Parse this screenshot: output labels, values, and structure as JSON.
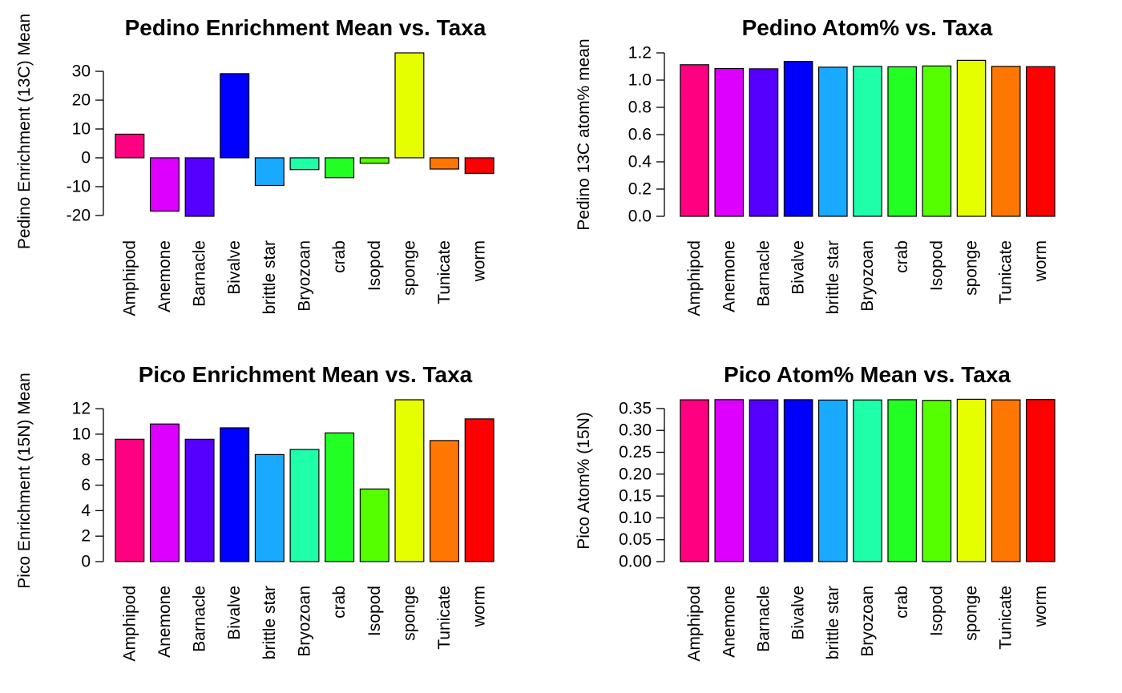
{
  "chart_data": [
    {
      "type": "bar",
      "title": "Pedino Enrichment Mean vs. Taxa",
      "ylabel": "Pedino Enrichment (13C) Mean",
      "xlabel": "",
      "categories": [
        "Amphipod",
        "Anemone",
        "Barnacle",
        "Bivalve",
        "brittle star",
        "Bryozoan",
        "crab",
        "Isopod",
        "sponge",
        "Tunicate",
        "worm"
      ],
      "values": [
        8.2,
        -18.5,
        -20.3,
        29.2,
        -9.6,
        -4.1,
        -6.9,
        -1.9,
        36.4,
        -3.9,
        -5.4
      ],
      "yticks": [
        -20,
        -10,
        0,
        10,
        20,
        30
      ],
      "ytick_labels": [
        "-20",
        "-10",
        "0",
        "10",
        "20",
        "30"
      ],
      "ylim": [
        -20.3,
        36.4
      ],
      "colors": [
        "#FF0080",
        "#DD00FF",
        "#5500FF",
        "#0000FF",
        "#19A9FF",
        "#1FFFAA",
        "#22FF22",
        "#55FF00",
        "#E5FF00",
        "#FF7700",
        "#FF0000"
      ]
    },
    {
      "type": "bar",
      "title": "Pedino Atom% vs. Taxa",
      "ylabel": "Pedino 13C atom% mean",
      "xlabel": "",
      "categories": [
        "Amphipod",
        "Anemone",
        "Barnacle",
        "Bivalve",
        "brittle star",
        "Bryozoan",
        "crab",
        "Isopod",
        "sponge",
        "Tunicate",
        "worm"
      ],
      "values": [
        1.113,
        1.085,
        1.083,
        1.137,
        1.095,
        1.101,
        1.098,
        1.104,
        1.145,
        1.101,
        1.099
      ],
      "yticks": [
        0.0,
        0.2,
        0.4,
        0.6,
        0.8,
        1.0,
        1.2
      ],
      "ytick_labels": [
        "0.0",
        "0.2",
        "0.4",
        "0.6",
        "0.8",
        "1.0",
        "1.2"
      ],
      "ylim": [
        0,
        1.2
      ],
      "colors": [
        "#FF0080",
        "#DD00FF",
        "#5500FF",
        "#0000FF",
        "#19A9FF",
        "#1FFFAA",
        "#22FF22",
        "#55FF00",
        "#E5FF00",
        "#FF7700",
        "#FF0000"
      ]
    },
    {
      "type": "bar",
      "title": "Pico Enrichment Mean vs. Taxa",
      "ylabel": "Pico Enrichment (15N) Mean",
      "xlabel": "",
      "categories": [
        "Amphipod",
        "Anemone",
        "Barnacle",
        "Bivalve",
        "brittle star",
        "Bryozoan",
        "crab",
        "Isopod",
        "sponge",
        "Tunicate",
        "worm"
      ],
      "values": [
        9.6,
        10.8,
        9.6,
        10.5,
        8.4,
        8.8,
        10.1,
        5.7,
        12.7,
        9.5,
        11.2
      ],
      "yticks": [
        0,
        2,
        4,
        6,
        8,
        10,
        12
      ],
      "ytick_labels": [
        "0",
        "2",
        "4",
        "6",
        "8",
        "10",
        "12"
      ],
      "ylim": [
        0,
        12.7
      ],
      "colors": [
        "#FF0080",
        "#DD00FF",
        "#5500FF",
        "#0000FF",
        "#19A9FF",
        "#1FFFAA",
        "#22FF22",
        "#55FF00",
        "#E5FF00",
        "#FF7700",
        "#FF0000"
      ]
    },
    {
      "type": "bar",
      "title": "Pico Atom% Mean vs. Taxa",
      "ylabel": "Pico Atom% (15N)",
      "xlabel": "",
      "categories": [
        "Amphipod",
        "Anemone",
        "Barnacle",
        "Bivalve",
        "brittle star",
        "Bryozoan",
        "crab",
        "Isopod",
        "sponge",
        "Tunicate",
        "worm"
      ],
      "values": [
        0.3699,
        0.3703,
        0.3699,
        0.3702,
        0.3694,
        0.3696,
        0.3701,
        0.3686,
        0.3711,
        0.3698,
        0.3705
      ],
      "yticks": [
        0.0,
        0.05,
        0.1,
        0.15,
        0.2,
        0.25,
        0.3,
        0.35
      ],
      "ytick_labels": [
        "0.00",
        "0.05",
        "0.10",
        "0.15",
        "0.20",
        "0.25",
        "0.30",
        "0.35"
      ],
      "ylim": [
        0,
        0.37
      ],
      "colors": [
        "#FF0080",
        "#DD00FF",
        "#5500FF",
        "#0000FF",
        "#19A9FF",
        "#1FFFAA",
        "#22FF22",
        "#55FF00",
        "#E5FF00",
        "#FF7700",
        "#FF0000"
      ]
    }
  ]
}
